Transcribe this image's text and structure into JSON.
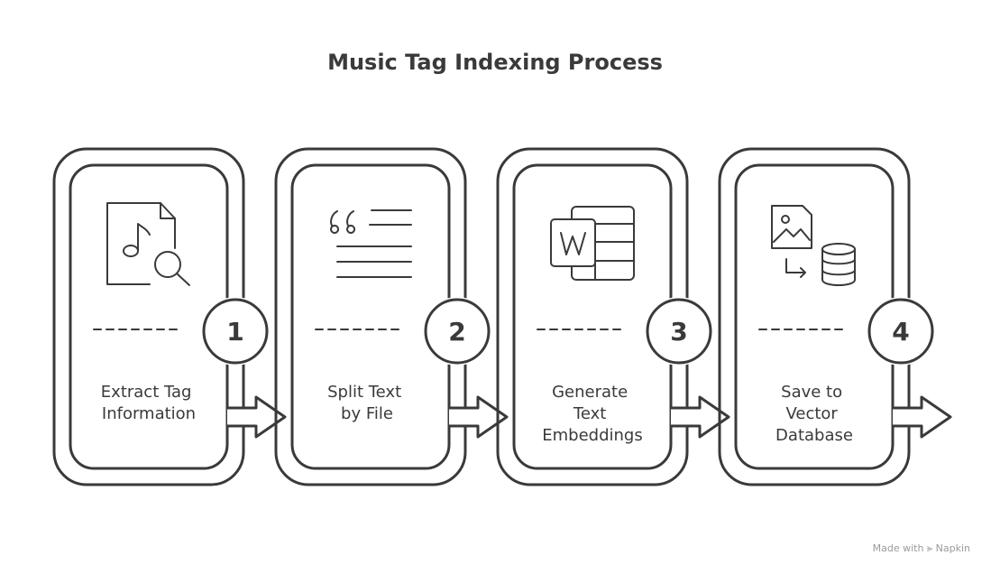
{
  "title": "Music Tag Indexing Process",
  "steps": [
    {
      "number": "1",
      "lines": [
        "Extract Tag",
        "Information"
      ],
      "icon": "music-file-search-icon"
    },
    {
      "number": "2",
      "lines": [
        "Split Text",
        "by File"
      ],
      "icon": "text-quote-lines-icon"
    },
    {
      "number": "3",
      "lines": [
        "Generate",
        "Text",
        "Embeddings"
      ],
      "icon": "word-document-table-icon"
    },
    {
      "number": "4",
      "lines": [
        "Save to",
        "Vector",
        "Database"
      ],
      "icon": "image-to-database-icon"
    }
  ],
  "watermark": "Made with ⪢ Napkin"
}
